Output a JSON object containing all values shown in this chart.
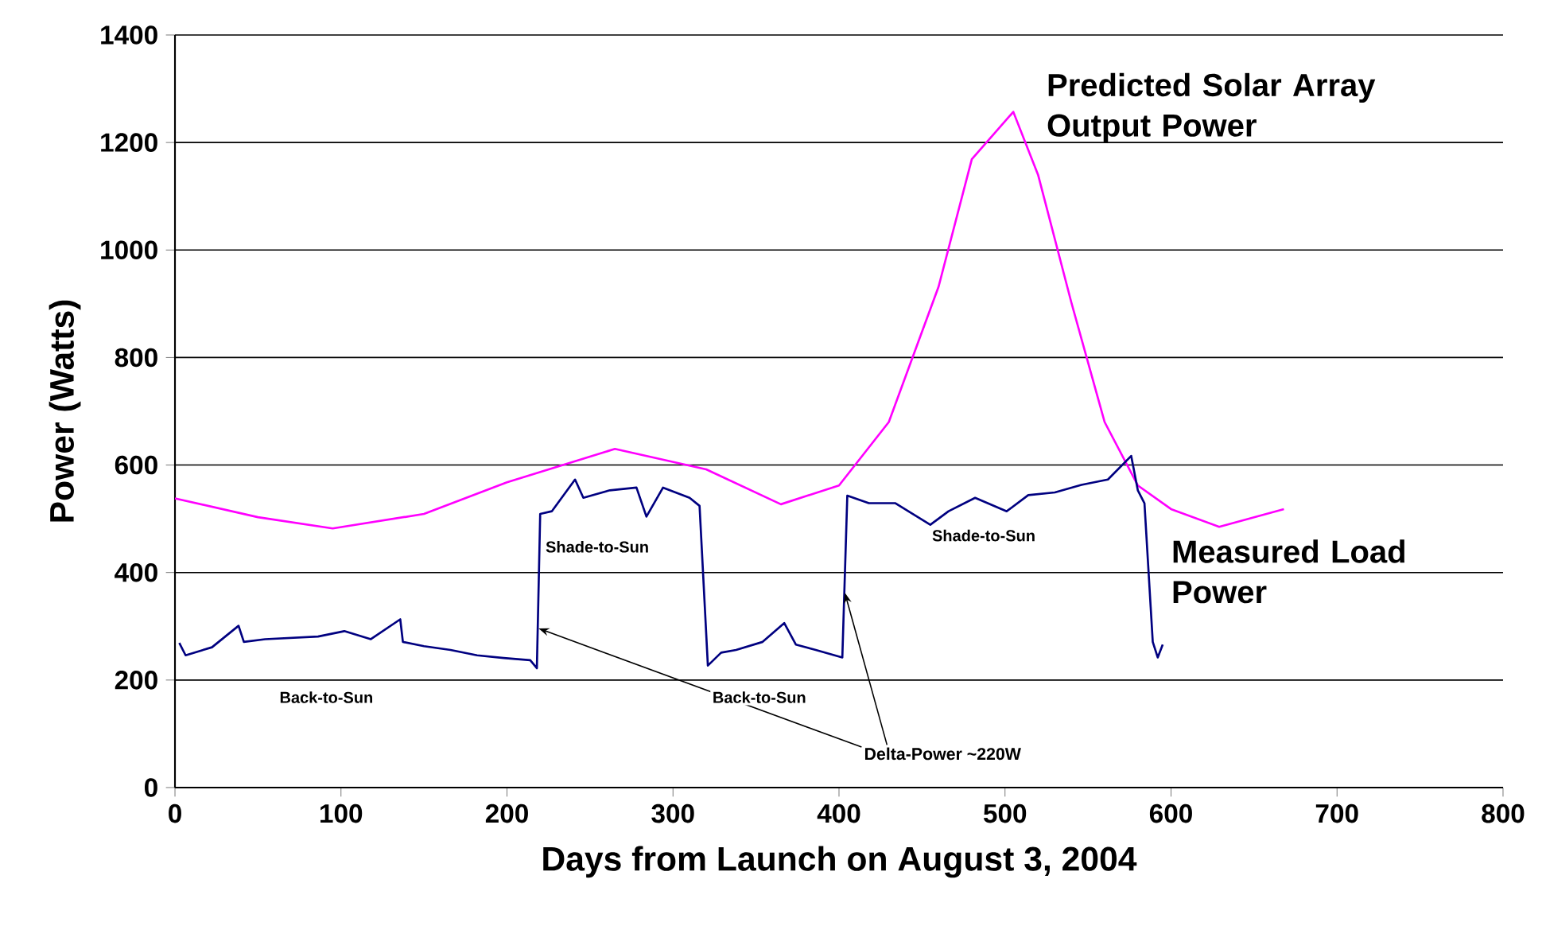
{
  "chart_data": {
    "type": "line",
    "xlabel": "Days from Launch on August 3, 2004",
    "ylabel": "Power (Watts)",
    "xlim": [
      0,
      800
    ],
    "ylim": [
      0,
      1400
    ],
    "xticks": [
      0,
      100,
      200,
      300,
      400,
      500,
      600,
      700,
      800
    ],
    "yticks": [
      0,
      200,
      400,
      600,
      800,
      1000,
      1200,
      1400
    ],
    "grid": "y",
    "legend": false,
    "line_style": "solid",
    "series": [
      {
        "name": "Predicted Solar Array Output Power",
        "color": "#ff00ff",
        "x": [
          0,
          50,
          95,
          150,
          200,
          265,
          320,
          365,
          400,
          430,
          460,
          480,
          505,
          520,
          540,
          560,
          580,
          600,
          629,
          668
        ],
        "values": [
          538,
          503,
          482,
          509,
          568,
          630,
          592,
          527,
          562,
          680,
          932,
          1169,
          1257,
          1139,
          902,
          680,
          562,
          518,
          485,
          518
        ]
      },
      {
        "name": "Measured Load Power",
        "color": "#000080",
        "x": [
          2.6,
          6.4,
          22.3,
          38.3,
          41.5,
          54.3,
          86.2,
          102,
          118,
          135.7,
          137.3,
          150,
          166,
          182,
          198,
          214,
          218,
          220,
          227,
          241,
          246,
          262,
          278,
          284,
          294,
          310,
          316,
          321,
          329,
          338,
          354,
          367,
          374,
          386,
          402,
          405,
          418,
          434,
          455,
          466,
          482,
          501,
          514,
          530,
          546,
          562,
          576,
          580,
          584,
          589,
          592,
          595
        ],
        "values": [
          269,
          246,
          261,
          301,
          271,
          276,
          281,
          291,
          276,
          313,
          271,
          263,
          256,
          246,
          241,
          237,
          222,
          509,
          514,
          573,
          539,
          553,
          558,
          504,
          558,
          539,
          524,
          227,
          251,
          256,
          271,
          306,
          266,
          256,
          242,
          543,
          529,
          529,
          489,
          514,
          539,
          514,
          544,
          549,
          563,
          573,
          617,
          553,
          529,
          271,
          242,
          266
        ]
      }
    ],
    "annotations": [
      "Back-to-Sun",
      "Shade-to-Sun",
      "Back-to-Sun",
      "Shade-to-Sun",
      {
        "text": "Delta-Power ~220W",
        "x": 219,
        "y": 296
      }
    ]
  }
}
